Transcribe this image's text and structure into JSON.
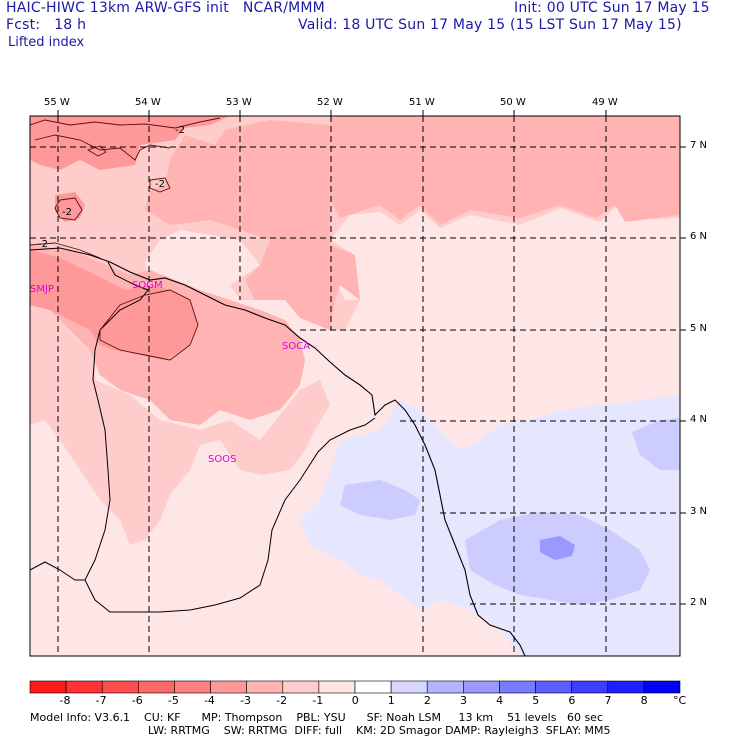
{
  "header": {
    "title_left": "HAIC-HIWC 13km ARW-GFS init   NCAR/MMM",
    "init": "Init: 00 UTC Sun 17 May 15",
    "fcst_label": "Fcst:   18 h",
    "valid": "Valid: 18 UTC Sun 17 May 15 (15 LST Sun 17 May 15)",
    "field": "Lifted index"
  },
  "map": {
    "lon_labels": [
      "55 W",
      "54 W",
      "53 W",
      "52 W",
      "51 W",
      "50 W",
      "49 W"
    ],
    "lat_labels": [
      "7 N",
      "6 N",
      "5 N",
      "4 N",
      "3 N",
      "2 N"
    ],
    "stations": [
      "SMJP",
      "SOGM",
      "SOCA",
      "SOOS"
    ],
    "contour_labels": [
      "-2",
      "-2",
      "-2",
      "-2"
    ]
  },
  "colorbar": {
    "labels": [
      "-8",
      "-7",
      "-6",
      "-5",
      "-4",
      "-3",
      "-2",
      "-1",
      "0",
      "1",
      "2",
      "3",
      "4",
      "5",
      "6",
      "7",
      "8"
    ],
    "unit": "°C",
    "colors": [
      "#ff1a1a",
      "#ff3333",
      "#ff4d4d",
      "#ff6666",
      "#ff8080",
      "#ff9999",
      "#ffb3b3",
      "#ffcccc",
      "#ffe6e6",
      "#ffffff",
      "#d6d6ff",
      "#b3b3ff",
      "#9999ff",
      "#7a7aff",
      "#5c5cff",
      "#3d3dff",
      "#1f1fff",
      "#0000ff"
    ]
  },
  "footer": {
    "line1": "Model Info: V3.6.1    CU: KF      MP: Thompson    PBL: YSU      SF: Noah LSM     13 km    51 levels   60 sec",
    "line2": "LW: RRTMG    SW: RRTMG  DIFF: full    KM: 2D Smagor DAMP: Rayleigh3  SFLAY: MM5"
  }
}
